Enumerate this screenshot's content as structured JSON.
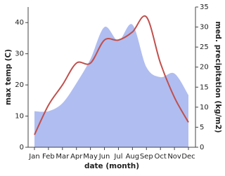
{
  "chart_data": {
    "type": "line-area",
    "x_label": "date (month)",
    "y_label": "max temp (C)",
    "y2_label": "med. precipitation (kg/m2)",
    "categories": [
      "Jan",
      "Feb",
      "Mar",
      "Apr",
      "May",
      "Jun",
      "Jul",
      "Aug",
      "Sep",
      "Oct",
      "Nov",
      "Dec"
    ],
    "series": [
      {
        "name": "med. precipitation",
        "color": "#b0bdf0",
        "axis": "y2",
        "kind": "area",
        "values": [
          9,
          9,
          11,
          16,
          22,
          30,
          26.6,
          30.6,
          20,
          17.5,
          18.4,
          13
        ]
      },
      {
        "name": "max temp",
        "color": "#c0504d",
        "kind": "line",
        "values": [
          4,
          13.5,
          20,
          27,
          27,
          34.4,
          34.4,
          37,
          41.8,
          27,
          16,
          8
        ]
      }
    ],
    "ylim": [
      0,
      45
    ],
    "yticks": [
      0,
      10,
      20,
      30,
      40
    ],
    "y2lim": [
      0,
      35
    ],
    "y2ticks": [
      0,
      5,
      10,
      15,
      20,
      25,
      30,
      35
    ]
  }
}
